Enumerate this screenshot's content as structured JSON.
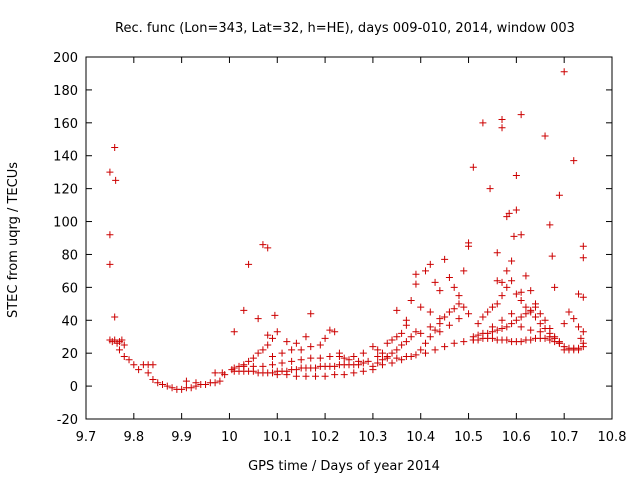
{
  "chart_data": {
    "type": "scatter",
    "title": "Rec. func (Lon=343, Lat=32, h=HE), days 009-010, 2014, window 003",
    "xlabel": "GPS time / Days of year 2014",
    "ylabel": "STEC from uqrg / TECUs",
    "xlim": [
      9.7,
      10.8
    ],
    "ylim": [
      -20,
      200
    ],
    "xticks": [
      "9.7",
      "9.8",
      "9.9",
      "10",
      "10.1",
      "10.2",
      "10.3",
      "10.4",
      "10.5",
      "10.6",
      "10.7",
      "10.8"
    ],
    "yticks": [
      "-20",
      "0",
      "20",
      "40",
      "60",
      "80",
      "100",
      "120",
      "140",
      "160",
      "180",
      "200"
    ],
    "grid": false,
    "marker": "+",
    "color": "#cc0000",
    "points": [
      [
        9.75,
        130
      ],
      [
        9.76,
        145
      ],
      [
        9.762,
        125
      ],
      [
        9.75,
        92
      ],
      [
        9.75,
        74
      ],
      [
        9.76,
        42
      ],
      [
        9.75,
        28
      ],
      [
        9.755,
        27
      ],
      [
        9.76,
        28
      ],
      [
        9.765,
        26
      ],
      [
        9.77,
        27
      ],
      [
        9.775,
        28
      ],
      [
        9.78,
        25
      ],
      [
        9.77,
        22
      ],
      [
        9.78,
        18
      ],
      [
        9.79,
        16
      ],
      [
        9.8,
        13
      ],
      [
        9.81,
        10
      ],
      [
        9.82,
        13
      ],
      [
        9.83,
        8
      ],
      [
        9.84,
        4
      ],
      [
        9.85,
        2
      ],
      [
        9.86,
        1
      ],
      [
        9.87,
        0
      ],
      [
        9.88,
        -1
      ],
      [
        9.89,
        -2
      ],
      [
        9.9,
        -2
      ],
      [
        9.91,
        -1
      ],
      [
        9.92,
        -1
      ],
      [
        9.93,
        0
      ],
      [
        9.94,
        1
      ],
      [
        9.95,
        1
      ],
      [
        9.96,
        2
      ],
      [
        9.97,
        2
      ],
      [
        9.98,
        3
      ],
      [
        9.985,
        8
      ],
      [
        9.97,
        8
      ],
      [
        9.99,
        7
      ],
      [
        9.83,
        13
      ],
      [
        9.84,
        13
      ],
      [
        9.91,
        3
      ],
      [
        9.93,
        2
      ],
      [
        10.01,
        33
      ],
      [
        10.03,
        46
      ],
      [
        10.04,
        74
      ],
      [
        10.06,
        41
      ],
      [
        10.07,
        86
      ],
      [
        10.08,
        84
      ],
      [
        10.08,
        31
      ],
      [
        10.09,
        29
      ],
      [
        10.095,
        43
      ],
      [
        10.1,
        33
      ],
      [
        10.08,
        25
      ],
      [
        10.07,
        22
      ],
      [
        10.06,
        20
      ],
      [
        10.05,
        17
      ],
      [
        10.04,
        15
      ],
      [
        10.03,
        13
      ],
      [
        10.02,
        12
      ],
      [
        10.01,
        11
      ],
      [
        10.005,
        10
      ],
      [
        10.01,
        9
      ],
      [
        10.02,
        9
      ],
      [
        10.03,
        9
      ],
      [
        10.04,
        9
      ],
      [
        10.05,
        9
      ],
      [
        10.06,
        8
      ],
      [
        10.07,
        8
      ],
      [
        10.08,
        8
      ],
      [
        10.09,
        8
      ],
      [
        10.1,
        9
      ],
      [
        10.11,
        9
      ],
      [
        10.12,
        9
      ],
      [
        10.13,
        10
      ],
      [
        10.14,
        10
      ],
      [
        10.15,
        11
      ],
      [
        10.16,
        11
      ],
      [
        10.17,
        11
      ],
      [
        10.18,
        11
      ],
      [
        10.19,
        12
      ],
      [
        10.2,
        12
      ],
      [
        10.21,
        12
      ],
      [
        10.22,
        12
      ],
      [
        10.23,
        13
      ],
      [
        10.24,
        13
      ],
      [
        10.25,
        13
      ],
      [
        10.26,
        13
      ],
      [
        10.27,
        13
      ],
      [
        10.28,
        14
      ],
      [
        10.29,
        15
      ],
      [
        10.03,
        12
      ],
      [
        10.05,
        12
      ],
      [
        10.07,
        12
      ],
      [
        10.09,
        13
      ],
      [
        10.11,
        14
      ],
      [
        10.13,
        15
      ],
      [
        10.15,
        16
      ],
      [
        10.17,
        17
      ],
      [
        10.19,
        17
      ],
      [
        10.21,
        18
      ],
      [
        10.23,
        18
      ],
      [
        10.25,
        16
      ],
      [
        10.27,
        15
      ],
      [
        10.09,
        18
      ],
      [
        10.11,
        20
      ],
      [
        10.13,
        22
      ],
      [
        10.15,
        22
      ],
      [
        10.17,
        24
      ],
      [
        10.19,
        25
      ],
      [
        10.12,
        27
      ],
      [
        10.14,
        26
      ],
      [
        10.16,
        30
      ],
      [
        10.17,
        44
      ],
      [
        10.2,
        29
      ],
      [
        10.21,
        34
      ],
      [
        10.22,
        33
      ],
      [
        10.23,
        20
      ],
      [
        10.24,
        17
      ],
      [
        10.26,
        18
      ],
      [
        10.28,
        20
      ],
      [
        10.1,
        7
      ],
      [
        10.12,
        7
      ],
      [
        10.14,
        6
      ],
      [
        10.16,
        6
      ],
      [
        10.18,
        6
      ],
      [
        10.2,
        6
      ],
      [
        10.22,
        7
      ],
      [
        10.24,
        7
      ],
      [
        10.26,
        8
      ],
      [
        10.28,
        9
      ],
      [
        10.3,
        10
      ],
      [
        10.31,
        14
      ],
      [
        10.32,
        16
      ],
      [
        10.33,
        18
      ],
      [
        10.34,
        20
      ],
      [
        10.35,
        22
      ],
      [
        10.36,
        25
      ],
      [
        10.37,
        27
      ],
      [
        10.38,
        30
      ],
      [
        10.39,
        33
      ],
      [
        10.3,
        24
      ],
      [
        10.31,
        22
      ],
      [
        10.32,
        20
      ],
      [
        10.33,
        26
      ],
      [
        10.34,
        28
      ],
      [
        10.35,
        30
      ],
      [
        10.36,
        32
      ],
      [
        10.37,
        37
      ],
      [
        10.38,
        52
      ],
      [
        10.39,
        62
      ],
      [
        10.39,
        68
      ],
      [
        10.41,
        70
      ],
      [
        10.42,
        74
      ],
      [
        10.43,
        63
      ],
      [
        10.44,
        58
      ],
      [
        10.45,
        77
      ],
      [
        10.46,
        66
      ],
      [
        10.47,
        60
      ],
      [
        10.48,
        55
      ],
      [
        10.49,
        70
      ],
      [
        10.5,
        87
      ],
      [
        10.5,
        85
      ],
      [
        10.35,
        46
      ],
      [
        10.37,
        40
      ],
      [
        10.4,
        48
      ],
      [
        10.42,
        45
      ],
      [
        10.44,
        41
      ],
      [
        10.31,
        18
      ],
      [
        10.33,
        17
      ],
      [
        10.35,
        17
      ],
      [
        10.37,
        18
      ],
      [
        10.39,
        19
      ],
      [
        10.41,
        20
      ],
      [
        10.43,
        22
      ],
      [
        10.45,
        24
      ],
      [
        10.47,
        26
      ],
      [
        10.49,
        27
      ],
      [
        10.51,
        28
      ],
      [
        10.3,
        12
      ],
      [
        10.32,
        13
      ],
      [
        10.34,
        14
      ],
      [
        10.36,
        16
      ],
      [
        10.38,
        18
      ],
      [
        10.4,
        22
      ],
      [
        10.41,
        26
      ],
      [
        10.42,
        30
      ],
      [
        10.43,
        34
      ],
      [
        10.44,
        38
      ],
      [
        10.45,
        42
      ],
      [
        10.46,
        45
      ],
      [
        10.47,
        47
      ],
      [
        10.48,
        50
      ],
      [
        10.49,
        48
      ],
      [
        10.4,
        32
      ],
      [
        10.42,
        36
      ],
      [
        10.44,
        33
      ],
      [
        10.46,
        37
      ],
      [
        10.48,
        41
      ],
      [
        10.5,
        44
      ],
      [
        10.51,
        133
      ],
      [
        10.53,
        160
      ],
      [
        10.545,
        120
      ],
      [
        10.56,
        81
      ],
      [
        10.57,
        162
      ],
      [
        10.57,
        157
      ],
      [
        10.58,
        103
      ],
      [
        10.585,
        105
      ],
      [
        10.59,
        76
      ],
      [
        10.595,
        91
      ],
      [
        10.6,
        107
      ],
      [
        10.6,
        128
      ],
      [
        10.61,
        165
      ],
      [
        10.61,
        92
      ],
      [
        10.61,
        57
      ],
      [
        10.62,
        67
      ],
      [
        10.63,
        58
      ],
      [
        10.64,
        50
      ],
      [
        10.66,
        152
      ],
      [
        10.67,
        98
      ],
      [
        10.675,
        79
      ],
      [
        10.68,
        60
      ],
      [
        10.69,
        116
      ],
      [
        10.7,
        191
      ],
      [
        10.72,
        137
      ],
      [
        10.73,
        56
      ],
      [
        10.74,
        54
      ],
      [
        10.74,
        85
      ],
      [
        10.74,
        78
      ],
      [
        10.71,
        45
      ],
      [
        10.72,
        41
      ],
      [
        10.73,
        36
      ],
      [
        10.74,
        33
      ],
      [
        10.51,
        30
      ],
      [
        10.52,
        31
      ],
      [
        10.53,
        32
      ],
      [
        10.54,
        32
      ],
      [
        10.55,
        33
      ],
      [
        10.56,
        34
      ],
      [
        10.57,
        35
      ],
      [
        10.58,
        36
      ],
      [
        10.59,
        38
      ],
      [
        10.6,
        40
      ],
      [
        10.61,
        42
      ],
      [
        10.62,
        44
      ],
      [
        10.63,
        46
      ],
      [
        10.64,
        48
      ],
      [
        10.65,
        44
      ],
      [
        10.66,
        40
      ],
      [
        10.67,
        35
      ],
      [
        10.68,
        30
      ],
      [
        10.51,
        28
      ],
      [
        10.52,
        28
      ],
      [
        10.53,
        29
      ],
      [
        10.54,
        29
      ],
      [
        10.55,
        29
      ],
      [
        10.56,
        28
      ],
      [
        10.57,
        28
      ],
      [
        10.58,
        28
      ],
      [
        10.59,
        27
      ],
      [
        10.6,
        27
      ],
      [
        10.61,
        27
      ],
      [
        10.62,
        28
      ],
      [
        10.63,
        28
      ],
      [
        10.64,
        29
      ],
      [
        10.65,
        29
      ],
      [
        10.66,
        29
      ],
      [
        10.67,
        28
      ],
      [
        10.68,
        27
      ],
      [
        10.69,
        26
      ],
      [
        10.7,
        24
      ],
      [
        10.71,
        23
      ],
      [
        10.72,
        23
      ],
      [
        10.73,
        23
      ],
      [
        10.74,
        24
      ],
      [
        10.52,
        38
      ],
      [
        10.53,
        42
      ],
      [
        10.54,
        45
      ],
      [
        10.55,
        48
      ],
      [
        10.56,
        50
      ],
      [
        10.57,
        55
      ],
      [
        10.58,
        60
      ],
      [
        10.59,
        64
      ],
      [
        10.6,
        56
      ],
      [
        10.61,
        52
      ],
      [
        10.62,
        48
      ],
      [
        10.63,
        45
      ],
      [
        10.64,
        42
      ],
      [
        10.65,
        38
      ],
      [
        10.66,
        35
      ],
      [
        10.67,
        32
      ],
      [
        10.68,
        29
      ],
      [
        10.69,
        26
      ],
      [
        10.55,
        36
      ],
      [
        10.57,
        40
      ],
      [
        10.59,
        44
      ],
      [
        10.61,
        36
      ],
      [
        10.63,
        34
      ],
      [
        10.65,
        33
      ],
      [
        10.67,
        30
      ],
      [
        10.69,
        27
      ],
      [
        10.7,
        22
      ],
      [
        10.71,
        22
      ],
      [
        10.72,
        22
      ],
      [
        10.73,
        22
      ],
      [
        10.74,
        26
      ],
      [
        10.735,
        29
      ],
      [
        10.56,
        64
      ],
      [
        10.57,
        63
      ],
      [
        10.58,
        70
      ],
      [
        10.7,
        38
      ]
    ]
  }
}
